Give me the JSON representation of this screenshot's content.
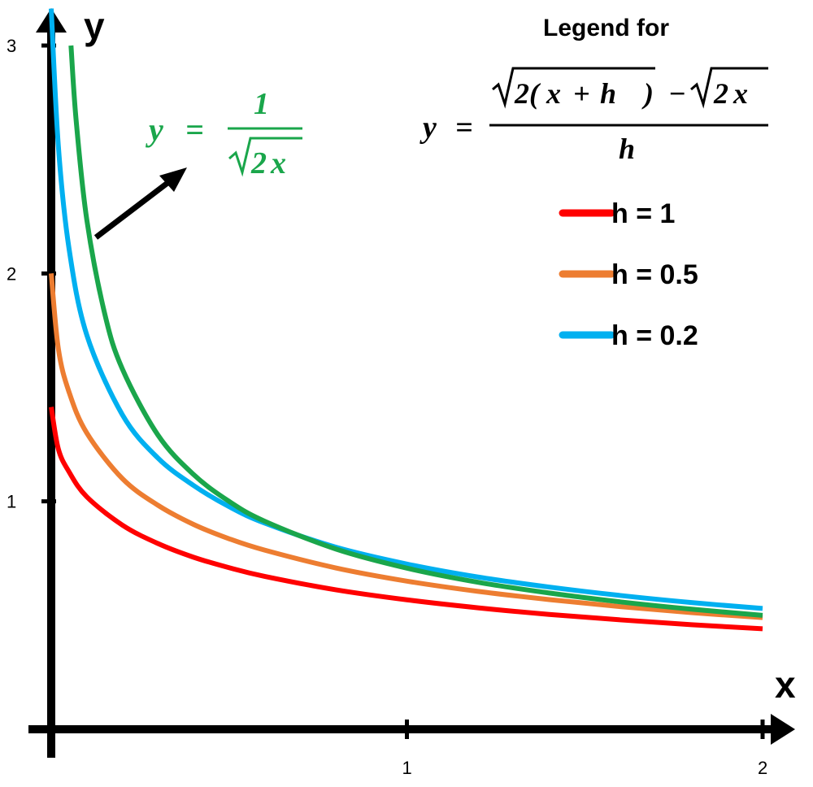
{
  "chart_data": {
    "type": "line",
    "xlabel": "x",
    "ylabel": "y",
    "xlim": [
      0,
      2
    ],
    "ylim": [
      0,
      3
    ],
    "x_ticks": [
      "1",
      "2"
    ],
    "y_ticks": [
      "1",
      "2",
      "3"
    ],
    "legend": {
      "heading": "Legend for",
      "formula": "y = (√(2(x + h)) − √(2x)) / h",
      "placement": "top-right"
    },
    "annotation": {
      "formula": "y = 1/√(2x)",
      "color": "#1aa64b"
    },
    "series": [
      {
        "name": "h = 1",
        "color": "#ff0000",
        "x": [
          0,
          0.02,
          0.05,
          0.1,
          0.2,
          0.3,
          0.4,
          0.5,
          0.6,
          0.8,
          1.0,
          1.2,
          1.4,
          1.6,
          1.8,
          2.0
        ],
        "y": [
          1.414,
          1.23,
          1.13,
          1.02,
          0.896,
          0.815,
          0.755,
          0.709,
          0.671,
          0.612,
          0.568,
          0.533,
          0.504,
          0.48,
          0.459,
          0.441
        ]
      },
      {
        "name": "h = 0.5",
        "color": "#ed7d31",
        "x": [
          0,
          0.02,
          0.05,
          0.1,
          0.2,
          0.3,
          0.4,
          0.5,
          0.6,
          0.8,
          1.0,
          1.2,
          1.4,
          1.6,
          1.8,
          2.0
        ],
        "y": [
          2.0,
          1.67,
          1.48,
          1.3,
          1.1,
          0.983,
          0.899,
          0.836,
          0.786,
          0.708,
          0.65,
          0.605,
          0.569,
          0.538,
          0.512,
          0.49
        ]
      },
      {
        "name": "h = 0.2",
        "color": "#00b0f0",
        "x": [
          0,
          0.02,
          0.05,
          0.1,
          0.2,
          0.3,
          0.4,
          0.5,
          0.6,
          0.8,
          1.0,
          1.2,
          1.4,
          1.6,
          1.8,
          2.0
        ],
        "y": [
          3.162,
          2.56,
          2.11,
          1.73,
          1.38,
          1.19,
          1.07,
          0.977,
          0.905,
          0.799,
          0.725,
          0.668,
          0.624,
          0.587,
          0.556,
          0.53
        ]
      },
      {
        "name": "y = 1/√(2x)",
        "color": "#1aa64b",
        "x": [
          0.0556,
          0.07,
          0.1,
          0.15,
          0.2,
          0.3,
          0.4,
          0.5,
          0.6,
          0.8,
          1.0,
          1.2,
          1.4,
          1.6,
          1.8,
          2.0
        ],
        "y": [
          3.0,
          2.673,
          2.236,
          1.826,
          1.581,
          1.291,
          1.118,
          1.0,
          0.913,
          0.791,
          0.707,
          0.645,
          0.598,
          0.559,
          0.527,
          0.5
        ]
      }
    ]
  }
}
